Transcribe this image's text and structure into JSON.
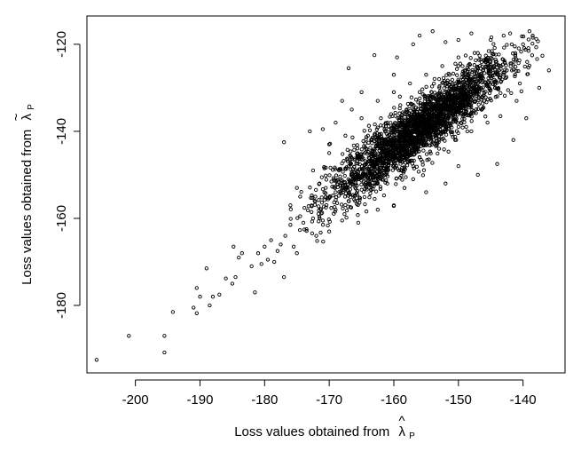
{
  "chart_data": {
    "type": "scatter",
    "title": "",
    "xlabel": "Loss values obtained from",
    "xlabel_symbol": "λ",
    "xlabel_accent": "^",
    "xlabel_subscript": "P",
    "ylabel": "Loss values obtained from",
    "ylabel_symbol": "λ",
    "ylabel_accent": "~",
    "ylabel_subscript": "P",
    "xlim": [
      -207.5,
      -133.5
    ],
    "ylim": [
      -195.5,
      -113.5
    ],
    "x_ticks": [
      -200,
      -190,
      -180,
      -170,
      -160,
      -150,
      -140
    ],
    "x_tick_labels": [
      "-200",
      "-190",
      "-180",
      "-170",
      "-160",
      "-150",
      "-140"
    ],
    "y_ticks": [
      -120,
      -140,
      -160,
      -180
    ],
    "y_tick_labels": [
      "-120",
      "-140",
      "-160",
      "-180"
    ],
    "grid": false,
    "marker": "open-circle",
    "point_color": "#000000",
    "series": [
      {
        "points": [
          [
            -206.0,
            -192.5
          ],
          [
            -201.0,
            -187.0
          ],
          [
            -195.5,
            -187.0
          ],
          [
            -195.5,
            -190.8
          ],
          [
            -194.2,
            -181.5
          ],
          [
            -191.0,
            -180.5
          ],
          [
            -190.5,
            -181.8
          ],
          [
            -190.5,
            -176.0
          ],
          [
            -190.0,
            -178.0
          ],
          [
            -189.0,
            -171.5
          ],
          [
            -188.5,
            -180.0
          ],
          [
            -188.0,
            -178.0
          ],
          [
            -187.0,
            -177.5
          ],
          [
            -186.0,
            -173.8
          ],
          [
            -185.0,
            -175.0
          ],
          [
            -184.5,
            -173.5
          ],
          [
            -184.8,
            -166.5
          ],
          [
            -184.0,
            -169.0
          ],
          [
            -183.5,
            -168.0
          ],
          [
            -182.0,
            -171.0
          ],
          [
            -181.5,
            -177.0
          ],
          [
            -181.0,
            -168.0
          ],
          [
            -180.5,
            -170.5
          ],
          [
            -180.0,
            -166.5
          ],
          [
            -179.5,
            -169.5
          ],
          [
            -179.0,
            -165.0
          ],
          [
            -178.5,
            -170.0
          ],
          [
            -178.0,
            -167.5
          ],
          [
            -177.5,
            -166.0
          ],
          [
            -177.0,
            -173.5
          ],
          [
            -176.8,
            -164.0
          ],
          [
            -176.0,
            -161.5
          ],
          [
            -175.5,
            -166.5
          ],
          [
            -175.0,
            -168.0
          ],
          [
            -174.5,
            -159.5
          ],
          [
            -177.0,
            -142.5
          ],
          [
            -139.0,
            -117.0
          ],
          [
            -138.5,
            -118.5
          ],
          [
            -136.0,
            -126.0
          ],
          [
            -142.0,
            -117.5
          ],
          [
            -140.0,
            -120.0
          ],
          [
            -143.0,
            -118.0
          ],
          [
            -145.0,
            -119.0
          ],
          [
            -148.0,
            -117.5
          ],
          [
            -150.0,
            -119.0
          ],
          [
            -152.0,
            -119.5
          ],
          [
            -154.0,
            -117.0
          ],
          [
            -156.0,
            -118.0
          ],
          [
            -157.0,
            -120.0
          ],
          [
            -159.5,
            -123.0
          ],
          [
            -160.0,
            -127.0
          ],
          [
            -163.0,
            -122.5
          ],
          [
            -165.0,
            -131.0
          ],
          [
            -166.5,
            -135.0
          ],
          [
            -168.0,
            -133.0
          ],
          [
            -171.0,
            -139.5
          ],
          [
            -170.0,
            -143.0
          ],
          [
            -173.0,
            -140.0
          ],
          [
            -169.0,
            -138.0
          ],
          [
            -167.0,
            -125.5
          ],
          [
            -137.5,
            -130.0
          ],
          [
            -139.5,
            -137.0
          ],
          [
            -141.5,
            -142.0
          ],
          [
            -144.0,
            -147.5
          ],
          [
            -147.0,
            -150.0
          ],
          [
            -150.0,
            -148.0
          ],
          [
            -152.0,
            -152.0
          ],
          [
            -155.0,
            -154.0
          ],
          [
            -157.0,
            -151.0
          ],
          [
            -160.0,
            -157.0
          ],
          [
            -162.5,
            -158.0
          ],
          [
            -165.5,
            -161.0
          ],
          [
            -168.0,
            -160.5
          ],
          [
            -170.0,
            -163.0
          ],
          [
            -172.0,
            -164.0
          ],
          [
            -174.0,
            -161.0
          ],
          [
            -173.5,
            -162.5
          ],
          [
            -172.5,
            -160.0
          ],
          [
            -171.0,
            -160.5
          ],
          [
            -169.0,
            -158.0
          ],
          [
            -166.0,
            -156.0
          ],
          [
            -163.5,
            -153.5
          ],
          [
            -161.0,
            -152.0
          ],
          [
            -158.5,
            -149.5
          ],
          [
            -156.0,
            -146.0
          ],
          [
            -153.0,
            -144.0
          ],
          [
            -150.5,
            -142.0
          ],
          [
            -148.0,
            -140.0
          ],
          [
            -145.5,
            -138.0
          ],
          [
            -143.5,
            -136.5
          ],
          [
            -141.0,
            -133.0
          ],
          [
            -140.5,
            -129.0
          ],
          [
            -142.5,
            -126.0
          ],
          [
            -145.0,
            -124.0
          ],
          [
            -147.5,
            -122.0
          ],
          [
            -150.0,
            -123.0
          ],
          [
            -152.5,
            -125.0
          ],
          [
            -155.0,
            -127.0
          ],
          [
            -157.5,
            -129.0
          ],
          [
            -160.0,
            -131.0
          ],
          [
            -162.5,
            -133.0
          ],
          [
            -165.0,
            -137.0
          ],
          [
            -167.5,
            -141.0
          ],
          [
            -170.0,
            -145.0
          ],
          [
            -172.5,
            -149.0
          ],
          [
            -175.0,
            -153.0
          ],
          [
            -176.0,
            -157.0
          ],
          [
            -174.5,
            -155.0
          ],
          [
            -171.5,
            -152.0
          ],
          [
            -168.5,
            -149.0
          ],
          [
            -165.5,
            -146.0
          ],
          [
            -162.5,
            -143.0
          ],
          [
            -159.5,
            -140.0
          ],
          [
            -156.5,
            -137.0
          ],
          [
            -153.5,
            -134.0
          ],
          [
            -150.5,
            -131.0
          ],
          [
            -147.5,
            -128.0
          ],
          [
            -144.5,
            -125.0
          ],
          [
            -151.0,
            -136.0
          ],
          [
            -154.0,
            -139.0
          ],
          [
            -157.0,
            -142.0
          ],
          [
            -160.0,
            -145.0
          ],
          [
            -163.0,
            -148.0
          ],
          [
            -166.0,
            -151.0
          ],
          [
            -169.0,
            -154.0
          ],
          [
            -158.0,
            -135.0
          ],
          [
            -161.0,
            -138.0
          ],
          [
            -164.0,
            -141.0
          ],
          [
            -155.0,
            -132.0
          ],
          [
            -152.0,
            -129.0
          ],
          [
            -149.0,
            -126.0
          ],
          [
            -146.0,
            -133.0
          ],
          [
            -149.0,
            -136.0
          ],
          [
            -152.0,
            -140.0
          ],
          [
            -155.0,
            -143.0
          ],
          [
            -158.0,
            -146.0
          ],
          [
            -161.0,
            -149.0
          ],
          [
            -164.0,
            -152.0
          ],
          [
            -167.0,
            -156.0
          ],
          [
            -170.5,
            -157.5
          ],
          [
            -162.0,
            -137.0
          ],
          [
            -159.0,
            -134.0
          ],
          [
            -156.0,
            -131.0
          ],
          [
            -153.0,
            -128.0
          ],
          [
            -150.0,
            -125.0
          ],
          [
            -147.0,
            -122.0
          ],
          [
            -164.5,
            -145.0
          ],
          [
            -167.0,
            -148.0
          ]
        ]
      }
    ],
    "cloud": {
      "count": 2600,
      "x_center": -156.0,
      "x_sd": 7.0,
      "slope": 1.09,
      "y_intercept": -139.5,
      "noise_sd": 3.3,
      "x_range": [
        -176.0,
        -137.0
      ],
      "y_range": [
        -166.0,
        -116.0
      ]
    }
  }
}
